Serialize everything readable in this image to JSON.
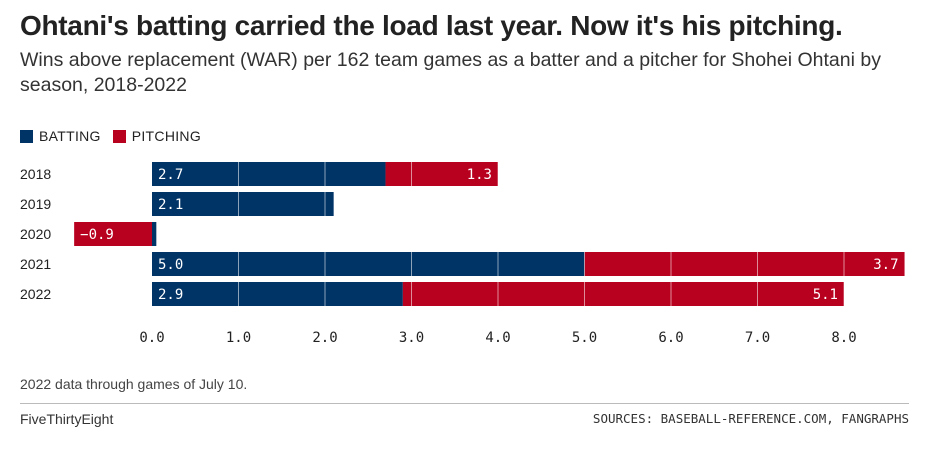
{
  "title": "Ohtani's batting carried the load last year. Now it's his pitching.",
  "subtitle": "Wins above replacement (WAR) per 162 team games as a batter and a pitcher for Shohei Ohtani by season, 2018-2022",
  "legend": [
    {
      "label": "BATTING",
      "color": "#003366"
    },
    {
      "label": "PITCHING",
      "color": "#b8001f"
    }
  ],
  "footnote": "2022 data through games of July 10.",
  "brand": "FiveThirtyEight",
  "sources": "SOURCES: BASEBALL-REFERENCE.COM, FANGRAPHS",
  "chart_data": {
    "type": "bar",
    "orientation": "horizontal",
    "stacked": true,
    "categories": [
      "2018",
      "2019",
      "2020",
      "2021",
      "2022"
    ],
    "series": [
      {
        "name": "BATTING",
        "color": "#003366",
        "values": [
          2.7,
          2.1,
          0.05,
          5.0,
          2.9
        ]
      },
      {
        "name": "PITCHING",
        "color": "#b8001f",
        "values": [
          1.3,
          0,
          -0.9,
          3.7,
          5.1
        ]
      }
    ],
    "data_labels": [
      {
        "category": "2018",
        "batting": "2.7",
        "pitching": "1.3"
      },
      {
        "category": "2019",
        "batting": "2.1",
        "pitching": ""
      },
      {
        "category": "2020",
        "batting": "",
        "pitching": "−0.9"
      },
      {
        "category": "2021",
        "batting": "5.0",
        "pitching": "3.7"
      },
      {
        "category": "2022",
        "batting": "2.9",
        "pitching": "5.1"
      }
    ],
    "xticks": [
      "0.0",
      "1.0",
      "2.0",
      "3.0",
      "4.0",
      "5.0",
      "6.0",
      "7.0",
      "8.0"
    ],
    "xlim": [
      -1.0,
      8.8
    ],
    "grid": true
  }
}
